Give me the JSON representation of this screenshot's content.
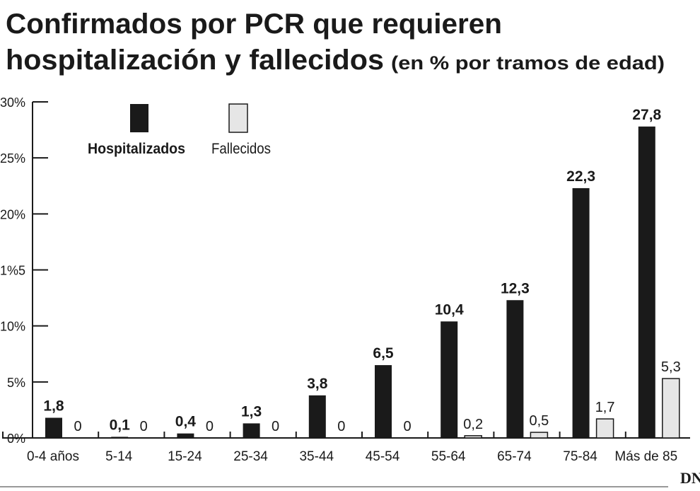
{
  "chart_data": {
    "type": "bar",
    "title_line1": "Confirmados por PCR que requieren",
    "title_line2": "hospitalización y fallecidos",
    "subtitle": "(en % por tramos de edad)",
    "xlabel": "",
    "ylabel": "",
    "ylim": [
      0,
      30
    ],
    "yticks": [
      {
        "value": 0,
        "label": "0%"
      },
      {
        "value": 5,
        "label": "5%"
      },
      {
        "value": 10,
        "label": "10%"
      },
      {
        "value": 15,
        "label": "1%5"
      },
      {
        "value": 20,
        "label": "20%"
      },
      {
        "value": 25,
        "label": "25%"
      },
      {
        "value": 30,
        "label": "30%"
      }
    ],
    "categories": [
      "0-4 años",
      "5-14",
      "15-24",
      "25-34",
      "35-44",
      "45-54",
      "55-64",
      "65-74",
      "75-84",
      "Más de 85"
    ],
    "series": [
      {
        "name": "Hospitalizados",
        "color": "#1a1a1a",
        "values": [
          1.8,
          0.1,
          0.4,
          1.3,
          3.8,
          6.5,
          10.4,
          12.3,
          22.3,
          27.8
        ],
        "labels": [
          "1,8",
          "0,1",
          "0,4",
          "1,3",
          "3,8",
          "6,5",
          "10,4",
          "12,3",
          "22,3",
          "27,8"
        ]
      },
      {
        "name": "Fallecidos",
        "color": "#e6e6e6",
        "values": [
          0,
          0,
          0,
          0,
          0,
          0,
          0.2,
          0.5,
          1.7,
          5.3
        ],
        "labels": [
          "0",
          "0",
          "0",
          "0",
          "0",
          "0",
          "0,2",
          "0,5",
          "1,7",
          "5,3"
        ]
      }
    ],
    "legend_position": "top-left",
    "grid": false
  },
  "logo": "DN"
}
